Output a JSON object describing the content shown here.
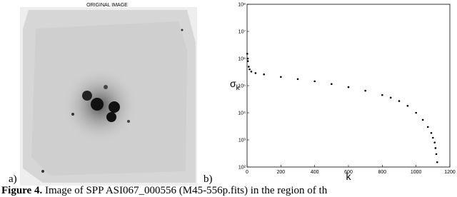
{
  "figure": {
    "image_title": "ORIGINAL IMAGE",
    "panel_a": "a)",
    "panel_b": "b)",
    "caption": {
      "label": "Figure 4.",
      "text": "Image of SPP ASI067_000556 (M45-556p.fits) in the region of th"
    }
  },
  "chart_data": {
    "type": "scatter",
    "color": "#000000",
    "log_y": true,
    "x_label": "k",
    "y_label": {
      "symbol": "σ",
      "subscript": "k"
    },
    "x": [
      1,
      3,
      5,
      10,
      15,
      25,
      50,
      100,
      200,
      300,
      400,
      500,
      600,
      700,
      800,
      850,
      900,
      950,
      1000,
      1040,
      1070,
      1090,
      1100,
      1110,
      1115,
      1120,
      1125
    ],
    "values": [
      1500000,
      1000000,
      800000,
      500000,
      400000,
      330000,
      290000,
      260000,
      210000,
      175000,
      145000,
      115000,
      88000,
      65000,
      45000,
      36000,
      27000,
      18000,
      10000,
      5500,
      3000,
      1800,
      1200,
      800,
      500,
      300,
      150
    ],
    "xlim": [
      0,
      1200
    ],
    "xticks": [
      0,
      200,
      400,
      600,
      800,
      1000,
      1200
    ],
    "ylim": [
      100,
      100000000
    ],
    "yticks": [
      {
        "value": 100,
        "label": "10²"
      },
      {
        "value": 1000,
        "label": "10³"
      },
      {
        "value": 10000,
        "label": "10⁴"
      },
      {
        "value": 100000,
        "label": "10⁵"
      },
      {
        "value": 1000000,
        "label": "10⁶"
      },
      {
        "value": 10000000,
        "label": "10⁷"
      },
      {
        "value": 100000000,
        "label": "10⁸"
      }
    ]
  }
}
